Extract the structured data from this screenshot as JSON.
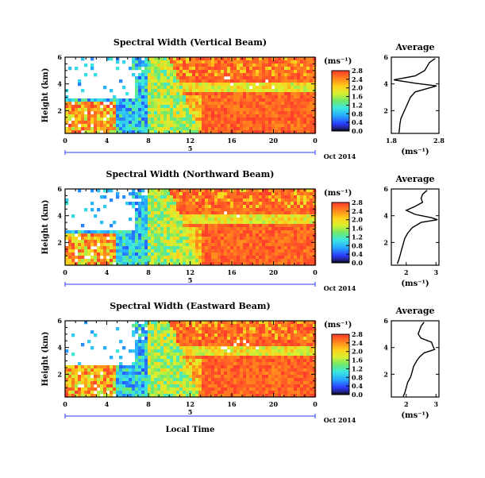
{
  "chart_data": [
    {
      "type": "heatmap",
      "title": "Spectral Width (Vertical Beam)",
      "ylabel": "Height (km)",
      "xticks": [
        "0",
        "4",
        "8",
        "12",
        "16",
        "20",
        "0"
      ],
      "yticks": [
        "6",
        "4",
        "2"
      ],
      "xlim": [
        0,
        24
      ],
      "ylim": [
        0.3,
        6
      ],
      "colorbar": {
        "unit": "(ms⁻¹)",
        "ticks": [
          "2.8",
          "2.4",
          "2.0",
          "1.6",
          "1.2",
          "0.8",
          "0.4",
          "0.0"
        ],
        "range": [
          0,
          2.8
        ]
      },
      "date_label": "Oct 2014",
      "day_marker": "5",
      "average": {
        "title": "Average",
        "xlabel": "(ms⁻¹)",
        "xticks": [
          "1.8",
          "2.8"
        ],
        "yticks": [
          "6",
          "4",
          "2"
        ],
        "xlim": [
          1.8,
          2.8
        ],
        "ylim": [
          0.3,
          6
        ],
        "profile": [
          [
            2.72,
            5.9
          ],
          [
            2.6,
            5.6
          ],
          [
            2.55,
            5.3
          ],
          [
            2.5,
            5.0
          ],
          [
            2.3,
            4.6
          ],
          [
            1.85,
            4.3
          ],
          [
            2.3,
            4.05
          ],
          [
            2.75,
            3.85
          ],
          [
            2.55,
            3.65
          ],
          [
            2.3,
            3.4
          ],
          [
            2.2,
            3.0
          ],
          [
            2.15,
            2.6
          ],
          [
            2.1,
            2.2
          ],
          [
            2.05,
            1.8
          ],
          [
            2.0,
            1.4
          ],
          [
            1.98,
            1.0
          ],
          [
            1.97,
            0.6
          ],
          [
            1.96,
            0.35
          ]
        ]
      }
    },
    {
      "type": "heatmap",
      "title": "Spectral Width (Northward Beam)",
      "ylabel": "Height (km)",
      "xticks": [
        "0",
        "4",
        "8",
        "12",
        "16",
        "20",
        "0"
      ],
      "yticks": [
        "6",
        "4",
        "2"
      ],
      "xlim": [
        0,
        24
      ],
      "ylim": [
        0.3,
        6
      ],
      "colorbar": {
        "unit": "(ms⁻¹)",
        "ticks": [
          "2.8",
          "2.4",
          "2.0",
          "1.6",
          "1.2",
          "0.8",
          "0.4",
          "0.0"
        ],
        "range": [
          0,
          2.8
        ]
      },
      "date_label": "Oct 2014",
      "day_marker": "5",
      "average": {
        "title": "Average",
        "xlabel": "(ms⁻¹)",
        "xticks": [
          "2",
          "3"
        ],
        "yticks": [
          "6",
          "4",
          "2"
        ],
        "xlim": [
          1.5,
          3.1
        ],
        "ylim": [
          0.3,
          6
        ],
        "profile": [
          [
            2.7,
            5.9
          ],
          [
            2.55,
            5.6
          ],
          [
            2.5,
            5.3
          ],
          [
            2.55,
            5.0
          ],
          [
            2.3,
            4.7
          ],
          [
            2.0,
            4.4
          ],
          [
            2.3,
            4.1
          ],
          [
            2.85,
            3.85
          ],
          [
            3.05,
            3.7
          ],
          [
            2.5,
            3.5
          ],
          [
            2.2,
            3.1
          ],
          [
            2.05,
            2.7
          ],
          [
            1.95,
            2.3
          ],
          [
            1.9,
            1.9
          ],
          [
            1.85,
            1.5
          ],
          [
            1.8,
            1.1
          ],
          [
            1.75,
            0.7
          ],
          [
            1.7,
            0.4
          ]
        ]
      }
    },
    {
      "type": "heatmap",
      "title": "Spectral Width (Eastward Beam)",
      "ylabel": "Height (km)",
      "xlabel": "Local Time",
      "xticks": [
        "0",
        "4",
        "8",
        "12",
        "16",
        "20",
        "0"
      ],
      "yticks": [
        "6",
        "4",
        "2"
      ],
      "xlim": [
        0,
        24
      ],
      "ylim": [
        0.3,
        6
      ],
      "colorbar": {
        "unit": "(ms⁻¹)",
        "ticks": [
          "2.8",
          "2.4",
          "2.0",
          "1.6",
          "1.2",
          "0.8",
          "0.4",
          "0.0"
        ],
        "range": [
          0,
          2.8
        ]
      },
      "date_label": "Oct 2014",
      "day_marker": "5",
      "average": {
        "title": "Average",
        "xlabel": "(ms⁻¹)",
        "xticks": [
          "2",
          "3"
        ],
        "yticks": [
          "6",
          "4",
          "2"
        ],
        "xlim": [
          1.5,
          3.1
        ],
        "ylim": [
          0.3,
          6
        ],
        "profile": [
          [
            2.6,
            5.9
          ],
          [
            2.5,
            5.6
          ],
          [
            2.45,
            5.3
          ],
          [
            2.4,
            5.0
          ],
          [
            2.5,
            4.7
          ],
          [
            2.85,
            4.4
          ],
          [
            2.9,
            4.1
          ],
          [
            2.95,
            3.85
          ],
          [
            2.6,
            3.6
          ],
          [
            2.45,
            3.3
          ],
          [
            2.35,
            3.0
          ],
          [
            2.25,
            2.6
          ],
          [
            2.2,
            2.2
          ],
          [
            2.15,
            1.8
          ],
          [
            2.05,
            1.4
          ],
          [
            2.0,
            1.0
          ],
          [
            1.95,
            0.6
          ],
          [
            1.9,
            0.35
          ]
        ]
      }
    }
  ]
}
